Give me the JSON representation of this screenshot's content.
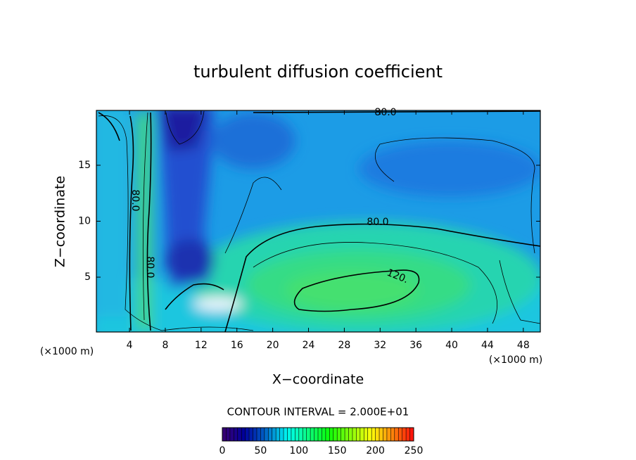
{
  "chart_data": {
    "type": "contour",
    "title": "turbulent diffusion coefficient",
    "xlabel": "X−coordinate",
    "ylabel": "Z−coordinate",
    "x_unit": "(×1000 m)",
    "xlim": [
      0.3,
      49.9
    ],
    "xticks": [
      4,
      8,
      12,
      16,
      20,
      24,
      28,
      32,
      36,
      40,
      44,
      48
    ],
    "ylim": [
      0.1,
      19.9
    ],
    "yticks": [
      5,
      10,
      15
    ],
    "contour_interval": "CONTOUR INTERVAL = 2.000E+01",
    "contour_labels": [
      {
        "value": 80,
        "label": "80.0"
      },
      {
        "value": 80,
        "label": "80.0"
      },
      {
        "value": 120,
        "label": "120."
      },
      {
        "value": 80,
        "label": "80.0"
      },
      {
        "value": 80,
        "label": "80.0"
      }
    ],
    "colorbar": {
      "lim": [
        0,
        250
      ],
      "ticks": [
        0,
        50,
        100,
        150,
        200,
        250
      ]
    }
  }
}
